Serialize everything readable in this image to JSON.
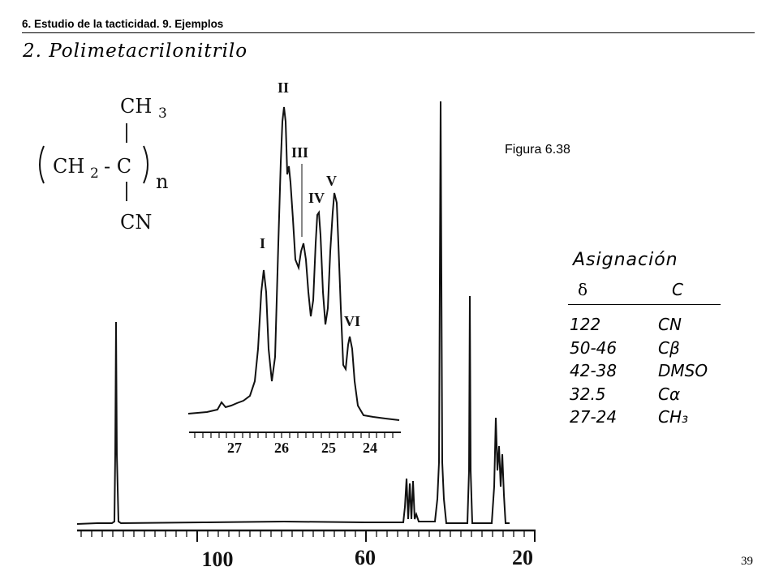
{
  "header": {
    "text": "6. Estudio de la tacticidad. 9. Ejemplos"
  },
  "title": "2. Polimetacrilonitrilo",
  "figure_label": "Figura 6.38",
  "structure": {
    "ch3": "CH",
    "ch3_sub": "3",
    "ch2": "CH",
    "ch2_sub": "2",
    "c": "- C",
    "n": "n",
    "cn": "CN"
  },
  "spectrum": {
    "axis_ticks": [
      "100",
      "60",
      "20"
    ],
    "inset_ticks": [
      "27",
      "26",
      "25",
      "24"
    ],
    "peak_labels": [
      "I",
      "II",
      "III",
      "IV",
      "V",
      "VI"
    ]
  },
  "assignment": {
    "title": "Asignación",
    "col_delta": "δ",
    "col_c": "C",
    "rows": [
      {
        "delta": "122",
        "carbon": "CN"
      },
      {
        "delta": "50-46",
        "carbon": "Cβ"
      },
      {
        "delta": "42-38",
        "carbon": "DMSO"
      },
      {
        "delta": "32.5",
        "carbon": "Cα"
      },
      {
        "delta": "27-24",
        "carbon": "CH₃"
      }
    ]
  },
  "page_number": "39"
}
